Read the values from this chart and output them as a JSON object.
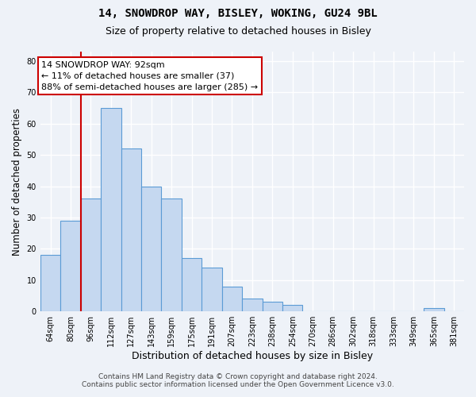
{
  "title": "14, SNOWDROP WAY, BISLEY, WOKING, GU24 9BL",
  "subtitle": "Size of property relative to detached houses in Bisley",
  "xlabel": "Distribution of detached houses by size in Bisley",
  "ylabel": "Number of detached properties",
  "bar_color": "#c5d8f0",
  "bar_edge_color": "#5b9bd5",
  "categories": [
    "64sqm",
    "80sqm",
    "96sqm",
    "112sqm",
    "127sqm",
    "143sqm",
    "159sqm",
    "175sqm",
    "191sqm",
    "207sqm",
    "223sqm",
    "238sqm",
    "254sqm",
    "270sqm",
    "286sqm",
    "302sqm",
    "318sqm",
    "333sqm",
    "349sqm",
    "365sqm",
    "381sqm"
  ],
  "values": [
    18,
    29,
    36,
    65,
    52,
    40,
    36,
    17,
    14,
    8,
    4,
    3,
    2,
    0,
    0,
    0,
    0,
    0,
    0,
    1,
    0
  ],
  "ylim": [
    0,
    83
  ],
  "yticks": [
    0,
    10,
    20,
    30,
    40,
    50,
    60,
    70,
    80
  ],
  "property_line_color": "#cc0000",
  "annotation_text": "14 SNOWDROP WAY: 92sqm\n← 11% of detached houses are smaller (37)\n88% of semi-detached houses are larger (285) →",
  "annotation_box_color": "#ffffff",
  "annotation_box_edge_color": "#cc0000",
  "footer_line1": "Contains HM Land Registry data © Crown copyright and database right 2024.",
  "footer_line2": "Contains public sector information licensed under the Open Government Licence v3.0.",
  "background_color": "#eef2f8",
  "grid_color": "#ffffff",
  "title_fontsize": 10,
  "subtitle_fontsize": 9,
  "tick_fontsize": 7,
  "ylabel_fontsize": 8.5,
  "xlabel_fontsize": 9,
  "annotation_fontsize": 8,
  "footer_fontsize": 6.5
}
